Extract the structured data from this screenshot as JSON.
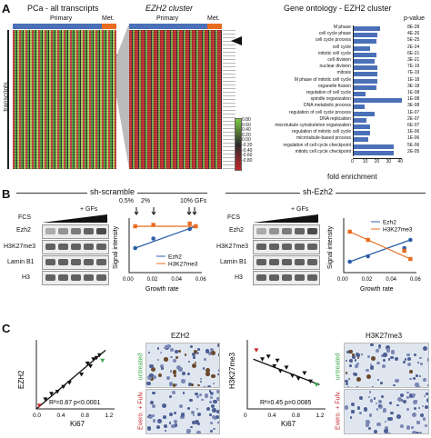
{
  "panelA": {
    "label": "A",
    "title1": "PCa - all transcripts",
    "title2": "EZH2 cluster",
    "title3": "Gene ontology - EZH2 cluster",
    "primary": "Primary",
    "met": "Met.",
    "transcripts": "transcripts",
    "pvalue_header": "p-value",
    "go_terms": [
      {
        "term": "M phase",
        "val": 23,
        "p": "8E-28"
      },
      {
        "term": "cell cycle phase",
        "val": 21,
        "p": "4E-26"
      },
      {
        "term": "cell cycle process",
        "val": 20,
        "p": "5E-25"
      },
      {
        "term": "cell cycle",
        "val": 15,
        "p": "2E-24"
      },
      {
        "term": "mitotic cell cycle",
        "val": 20,
        "p": "6E-21"
      },
      {
        "term": "cell division",
        "val": 19,
        "p": "3E-21"
      },
      {
        "term": "nuclear division",
        "val": 21,
        "p": "7E-19"
      },
      {
        "term": "mitosis",
        "val": 21,
        "p": "7E-19"
      },
      {
        "term": "M phase of mitotic cell cycle",
        "val": 21,
        "p": "1E-18"
      },
      {
        "term": "organelle fission",
        "val": 20,
        "p": "3E-18"
      },
      {
        "term": "regulation of cell cycle",
        "val": 11,
        "p": "1E-08"
      },
      {
        "term": "spindle organization",
        "val": 42,
        "p": "1E-08"
      },
      {
        "term": "DNA metabolic process",
        "val": 10,
        "p": "3E-08"
      },
      {
        "term": "regulation of cell cycle process",
        "val": 19,
        "p": "1E-07"
      },
      {
        "term": "DNA replication",
        "val": 12,
        "p": "2E-07"
      },
      {
        "term": "microtubule cytoskeleton organization",
        "val": 15,
        "p": "6E-07"
      },
      {
        "term": "regulation of mitotic cell cycle",
        "val": 15,
        "p": "1E-06"
      },
      {
        "term": "microtubule-based process",
        "val": 13,
        "p": "1E-06"
      },
      {
        "term": "regulation of cell cycle checkpoint",
        "val": 35,
        "p": "5E-06"
      },
      {
        "term": "mitotic cell cycle checkpoint",
        "val": 35,
        "p": "2E-05"
      }
    ],
    "x_ticks": [
      "0",
      "10",
      "20",
      "30",
      "40"
    ],
    "x_label": "fold enrichment",
    "colorbar": [
      "0.80",
      "0.60",
      "0.40",
      "0.20",
      "0.00",
      "-0.20",
      "-0.40",
      "-0.60",
      "-0.80"
    ]
  },
  "panelB": {
    "label": "B",
    "left_title": "sh-scramble",
    "right_title": "sh-Ezh2",
    "fcs": "FCS",
    "gfs": "+ GFs",
    "blot_labels": [
      "Ezh2",
      "H3K27me3",
      "Lamin B1",
      "H3"
    ],
    "annot": [
      "0.5%",
      "2%",
      "10% GFs"
    ],
    "ylabel": "Signal intensity",
    "xlabel": "Growth rate",
    "xticks": [
      "0.00",
      "0.02",
      "0.04",
      "0.06"
    ],
    "legend": [
      "Ezh2",
      "H3K27me3"
    ]
  },
  "panelC": {
    "label": "C",
    "left_ylabel": "EZH2",
    "left_xlabel": "Ki67",
    "left_stat": "R²=0.87 p<0.0001",
    "left_xticks": [
      "0.0",
      "0.4",
      "0.8",
      "1.2"
    ],
    "right_ylabel": "H3K27me3",
    "right_xlabel": "Ki67",
    "right_stat": "R²=0.45 p=0.0085",
    "right_xticks": [
      "0",
      "0.4",
      "0.8",
      "1.2"
    ],
    "img1_title": "EZH2",
    "img2_title": "H3K27me3",
    "untreated": "untreated",
    "treated": "Evero. + Fulv."
  }
}
